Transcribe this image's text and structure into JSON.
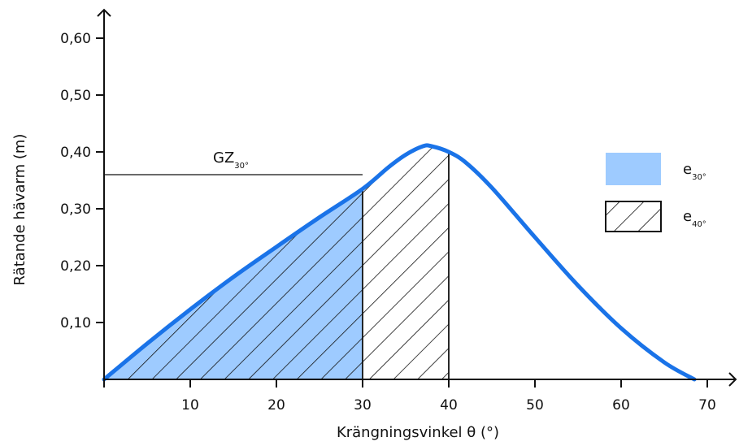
{
  "chart_data": {
    "type": "area",
    "xlabel": "Krängningsvinkel θ (°)",
    "ylabel": "Rätande hävarm (m)",
    "xlim": [
      0,
      72
    ],
    "ylim": [
      0,
      0.6
    ],
    "x_ticks": [
      10,
      20,
      30,
      40,
      50,
      60,
      70
    ],
    "x_tick_labels": [
      "10",
      "20",
      "30",
      "40",
      "50",
      "60",
      "70"
    ],
    "y_ticks": [
      0.1,
      0.2,
      0.3,
      0.4,
      0.5,
      0.6
    ],
    "y_tick_labels": [
      "0,10",
      "0,20",
      "0,30",
      "0,40",
      "0,50",
      "0,60"
    ],
    "grid": false,
    "legend_position": "right",
    "colors": {
      "curve": "#1a73e8",
      "e30_fill": "#9ecbff",
      "hatch": "#111111"
    },
    "series": [
      {
        "name": "GZ",
        "x": [
          0,
          5,
          10,
          15,
          20,
          25,
          30,
          33,
          35,
          37,
          38,
          40,
          42,
          45,
          50,
          55,
          60,
          65,
          68.5
        ],
        "y": [
          0,
          0.063,
          0.123,
          0.18,
          0.233,
          0.285,
          0.335,
          0.373,
          0.395,
          0.41,
          0.41,
          0.4,
          0.381,
          0.337,
          0.25,
          0.165,
          0.09,
          0.03,
          0
        ]
      }
    ],
    "annotation": {
      "label": "GZ",
      "subscript": "30°",
      "x": 30,
      "y": 0.36
    },
    "legend": [
      {
        "label": "e",
        "subscript": "30°",
        "style": "filled",
        "x_from": 0,
        "x_to": 30
      },
      {
        "label": "e",
        "subscript": "40°",
        "style": "hatched",
        "x_from": 0,
        "x_to": 40
      }
    ]
  }
}
